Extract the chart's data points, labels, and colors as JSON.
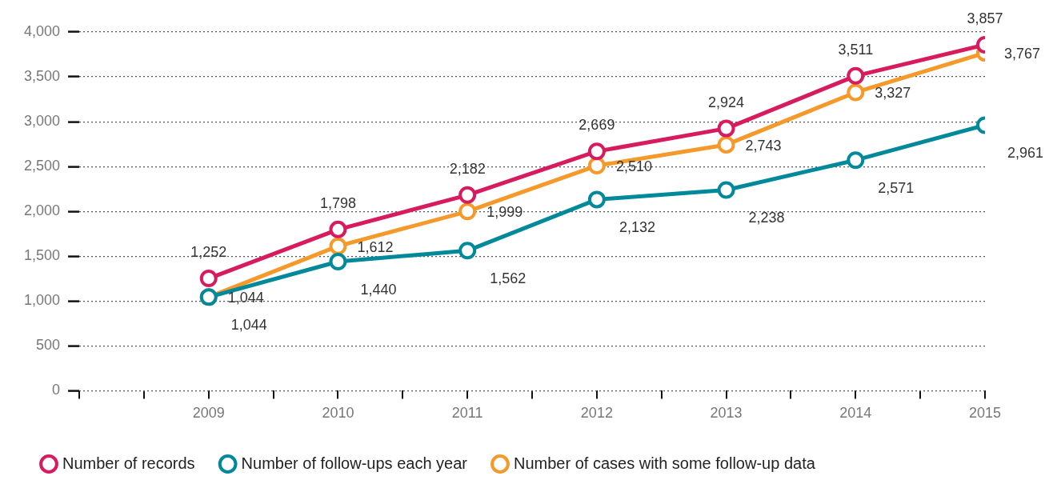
{
  "chart_data": {
    "type": "line",
    "x": [
      2009,
      2010,
      2011,
      2012,
      2013,
      2014,
      2015
    ],
    "series": [
      {
        "name": "Number of records",
        "color": "#d81b5e",
        "values": [
          1252,
          1798,
          2182,
          2669,
          2924,
          3511,
          3857
        ],
        "value_labels": [
          "1,252",
          "1,798",
          "2,182",
          "2,669",
          "2,924",
          "3,511",
          "3,857"
        ]
      },
      {
        "name": "Number of follow-ups each year",
        "color": "#00899b",
        "values": [
          1044,
          1440,
          1562,
          2132,
          2238,
          2571,
          2961
        ],
        "value_labels": [
          "1,044",
          "1,440",
          "1,562",
          "2,132",
          "2,238",
          "2,571",
          "2,961"
        ]
      },
      {
        "name": "Number of cases with some follow-up data",
        "color": "#f5992a",
        "values": [
          1044,
          1612,
          1999,
          2510,
          2743,
          3327,
          3767
        ],
        "value_labels": [
          "1,044",
          "1,612",
          "1,999",
          "2,510",
          "2,743",
          "3,327",
          "3,767"
        ]
      }
    ],
    "xlim": [
      2008,
      2015
    ],
    "xticks": [
      {
        "value": 2008,
        "label": null
      },
      {
        "value": 2008.5,
        "label": null
      },
      2009,
      {
        "value": 2009.5,
        "label": null
      },
      2010,
      {
        "value": 2010.5,
        "label": null
      },
      2011,
      {
        "value": 2011.5,
        "label": null
      },
      2012,
      {
        "value": 2012.5,
        "label": null
      },
      2013,
      {
        "value": 2013.5,
        "label": null
      },
      2014,
      {
        "value": 2014.5,
        "label": null
      },
      2015
    ],
    "ylim": [
      0,
      4000
    ],
    "yticks": [
      0,
      500,
      {
        "value": 1000,
        "label": "1,000"
      },
      {
        "value": 1500,
        "label": "1,500"
      },
      {
        "value": 2000,
        "label": "2,000"
      },
      {
        "value": 2500,
        "label": "2,500"
      },
      {
        "value": 3000,
        "label": "3,000"
      },
      {
        "value": 3500,
        "label": "3,500"
      },
      {
        "value": 4000,
        "label": "4,000"
      }
    ],
    "grid": "y",
    "legend": "bottom",
    "marker": "circle",
    "line_style": "solid"
  }
}
